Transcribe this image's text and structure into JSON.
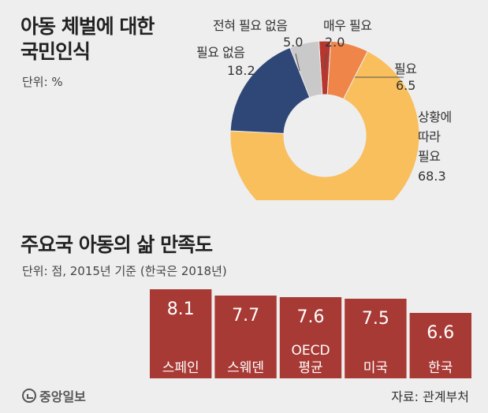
{
  "chart_data": [
    {
      "type": "pie",
      "title": "아동 체벌에 대한 국민인식",
      "title_line1": "아동 체벌에 대한",
      "title_line2": "국민인식",
      "unit": "단위: %",
      "slices": [
        {
          "label": "매우 필요",
          "value": 2.0,
          "value_text": "2.0",
          "color": "#b5372e"
        },
        {
          "label": "필요",
          "value": 6.5,
          "value_text": "6.5",
          "color": "#f0854a"
        },
        {
          "label_lines": [
            "상황에",
            "따라",
            "필요"
          ],
          "label": "상황에 따라 필요",
          "value": 68.3,
          "value_text": "68.3",
          "color": "#f8bf5c"
        },
        {
          "label": "필요 없음",
          "value": 18.2,
          "value_text": "18.2",
          "color": "#2f4776"
        },
        {
          "label": "전혀 필요 없음",
          "value": 5.0,
          "value_text": "5.0",
          "color": "#c9c9c9"
        }
      ]
    },
    {
      "type": "bar",
      "title": "주요국 아동의 삶 만족도",
      "unit": "단위: 점, 2015년 기준 (한국은 2018년)",
      "categories": [
        [
          "스페인"
        ],
        [
          "스웨덴"
        ],
        [
          "OECD",
          "평균"
        ],
        [
          "미국"
        ],
        [
          "한국"
        ]
      ],
      "values": [
        8.1,
        7.7,
        7.6,
        7.5,
        6.6
      ],
      "value_texts": [
        "8.1",
        "7.7",
        "7.6",
        "7.5",
        "6.6"
      ],
      "color": "#a83a35",
      "ylim": [
        0,
        8.1
      ]
    }
  ],
  "footer": {
    "logo": "중앙일보",
    "source": "자료: 관계부처"
  }
}
